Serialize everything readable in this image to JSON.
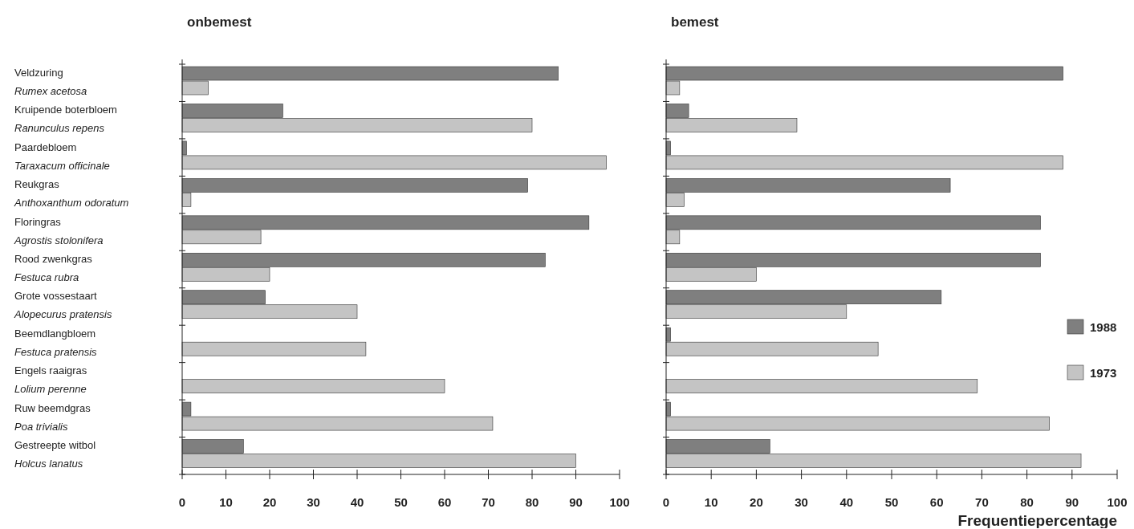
{
  "chart_data": [
    {
      "type": "bar",
      "orientation": "horizontal",
      "title": "onbemest",
      "categories": [
        "Veldzuring\nRumex acetosa",
        "Kruipende boterbloem\nRanunculus repens",
        "Paardebloem\nTaraxacum officinale",
        "Reukgras\nAnthoxanthum odoratum",
        "Floringras\nAgrostis stolonifera",
        "Rood zwenkgras\nFestuca rubra",
        "Grote vossestaart\nAlopecurus pratensis",
        "Beemdlangbloem\nFestuca pratensis",
        "Engels raaigras\nLolium perenne",
        "Ruw beemdgras\nPoa trivialis",
        "Gestreepte witbol\nHolcus lanatus"
      ],
      "series": [
        {
          "color": "#7f7f7f",
          "values": [
            86,
            23,
            1,
            79,
            93,
            83,
            19,
            0,
            0,
            2,
            14
          ]
        },
        {
          "color": "#c4c4c4",
          "values": [
            6,
            80,
            97,
            2,
            18,
            20,
            40,
            42,
            60,
            71,
            90
          ]
        }
      ],
      "xlim": [
        0,
        100
      ],
      "xticks": [
        0,
        10,
        20,
        30,
        40,
        50,
        60,
        70,
        80,
        90,
        100
      ],
      "legend": false
    },
    {
      "type": "bar",
      "orientation": "horizontal",
      "title": "bemest",
      "xlabel": "Frequentiepercentage",
      "categories": [
        null,
        null,
        null,
        null,
        null,
        null,
        null,
        null,
        null,
        null,
        null
      ],
      "series": [
        {
          "name": "1988",
          "color": "#7f7f7f",
          "values": [
            88,
            5,
            1,
            63,
            83,
            83,
            61,
            1,
            0,
            1,
            23
          ]
        },
        {
          "name": "1973",
          "color": "#c4c4c4",
          "values": [
            3,
            29,
            88,
            4,
            3,
            20,
            40,
            47,
            69,
            85,
            92
          ]
        }
      ],
      "xlim": [
        0,
        100
      ],
      "xticks": [
        0,
        10,
        20,
        30,
        40,
        50,
        60,
        70,
        80,
        90,
        100
      ],
      "legend": "right"
    }
  ]
}
